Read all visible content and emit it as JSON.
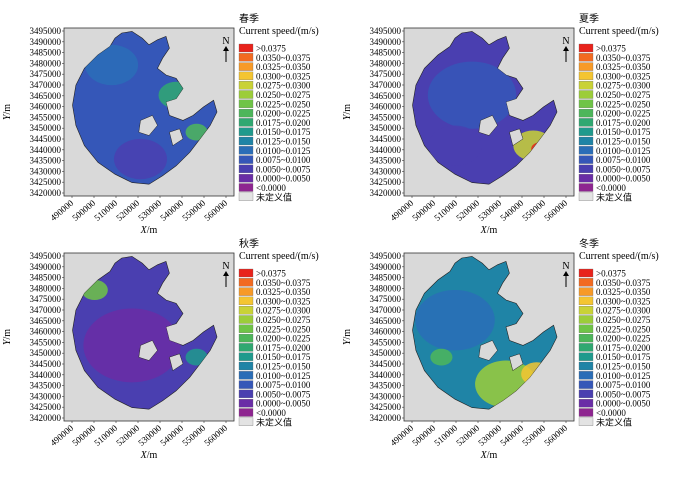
{
  "chart_data": [
    {
      "type": "heatmap",
      "season": "春季",
      "subtitle": "Current speed/(m/s)",
      "north_label": "N",
      "xlabel_main": "X",
      "xlabel_unit": "/m",
      "ylabel_main": "Y",
      "ylabel_unit": "/m",
      "x_ticks": [
        "490000",
        "500000",
        "510000",
        "520000",
        "530000",
        "540000",
        "550000",
        "560000"
      ],
      "y_ticks": [
        "3495000",
        "3490000",
        "3485000",
        "3480000",
        "3475000",
        "3470000",
        "3465000",
        "3460000",
        "3455000",
        "3450000",
        "3445000",
        "3440000",
        "3435000",
        "3430000",
        "3425000",
        "3420000"
      ],
      "xlim": [
        485000,
        565000
      ],
      "ylim": [
        3420000,
        3495000
      ],
      "dominant_class": "0.0075~0.0100",
      "hotspots": [
        "0.0175~0.0200 near east bay",
        "0.0200~0.0225 near south-east inlet"
      ]
    },
    {
      "type": "heatmap",
      "season": "夏季",
      "subtitle": "Current speed/(m/s)",
      "north_label": "N",
      "xlabel_main": "X",
      "xlabel_unit": "/m",
      "ylabel_main": "Y",
      "ylabel_unit": "/m",
      "x_ticks": [
        "490000",
        "500000",
        "510000",
        "520000",
        "530000",
        "540000",
        "550000",
        "560000"
      ],
      "y_ticks": [
        "3495000",
        "3490000",
        "3485000",
        "3480000",
        "3475000",
        "3470000",
        "3465000",
        "3460000",
        "3455000",
        "3450000",
        "3445000",
        "3440000",
        "3435000",
        "3430000",
        "3425000",
        "3420000"
      ],
      "xlim": [
        485000,
        565000
      ],
      "ylim": [
        3420000,
        3495000
      ],
      "dominant_class": "0.0050~0.0075",
      "hotspots": [
        ">0.0375 at south-east inlet"
      ]
    },
    {
      "type": "heatmap",
      "season": "秋季",
      "subtitle": "Current speed/(m/s)",
      "north_label": "N",
      "xlabel_main": "X",
      "xlabel_unit": "/m",
      "ylabel_main": "Y",
      "ylabel_unit": "/m",
      "x_ticks": [
        "490000",
        "500000",
        "510000",
        "520000",
        "530000",
        "540000",
        "550000",
        "560000"
      ],
      "y_ticks": [
        "3495000",
        "3490000",
        "3485000",
        "3480000",
        "3475000",
        "3470000",
        "3465000",
        "3460000",
        "3455000",
        "3450000",
        "3445000",
        "3440000",
        "3435000",
        "3430000",
        "3425000",
        "3420000"
      ],
      "xlim": [
        485000,
        565000
      ],
      "ylim": [
        3420000,
        3495000
      ],
      "dominant_class": "0.0050~0.0075",
      "hotspots": [
        "0.0225~0.0250 near north-west inlet"
      ]
    },
    {
      "type": "heatmap",
      "season": "冬季",
      "subtitle": "Current speed/(m/s)",
      "north_label": "N",
      "xlabel_main": "X",
      "xlabel_unit": "/m",
      "ylabel_main": "Y",
      "ylabel_unit": "/m",
      "x_ticks": [
        "490000",
        "500000",
        "510000",
        "520000",
        "530000",
        "540000",
        "550000",
        "560000"
      ],
      "y_ticks": [
        "3495000",
        "3490000",
        "3485000",
        "3480000",
        "3475000",
        "3470000",
        "3465000",
        "3460000",
        "3455000",
        "3450000",
        "3445000",
        "3440000",
        "3435000",
        "3430000",
        "3425000",
        "3420000"
      ],
      "xlim": [
        485000,
        565000
      ],
      "ylim": [
        3420000,
        3495000
      ],
      "dominant_class": "0.0125~0.0150",
      "hotspots": [
        ">0.0375 at south-east inlet",
        "0.0250~0.0300 in southern basin"
      ]
    }
  ],
  "legend": {
    "items": [
      {
        "label": ">0.0375",
        "color": "#e8231b"
      },
      {
        "label": "0.0350~0.0375",
        "color": "#f26a21"
      },
      {
        "label": "0.0325~0.0350",
        "color": "#f79a28"
      },
      {
        "label": "0.0300~0.0325",
        "color": "#f4c531"
      },
      {
        "label": "0.0275~0.0300",
        "color": "#c9d236"
      },
      {
        "label": "0.0250~0.0275",
        "color": "#9ccd3a"
      },
      {
        "label": "0.0225~0.0250",
        "color": "#6fc447"
      },
      {
        "label": "0.0200~0.0225",
        "color": "#4db65a"
      },
      {
        "label": "0.0175~0.0200",
        "color": "#2fa871"
      },
      {
        "label": "0.0150~0.0175",
        "color": "#1f9a8d"
      },
      {
        "label": "0.0125~0.0150",
        "color": "#1f84a6"
      },
      {
        "label": "0.0100~0.0125",
        "color": "#2a6db7"
      },
      {
        "label": "0.0075~0.0100",
        "color": "#3557b8"
      },
      {
        "label": "0.0050~0.0075",
        "color": "#4a3fb0"
      },
      {
        "label": "0.0000~0.0050",
        "color": "#6a2da6"
      },
      {
        "label": "<0.0000",
        "color": "#8e2590"
      },
      {
        "label": "未定义值",
        "color": "#e3e3e3"
      }
    ]
  }
}
